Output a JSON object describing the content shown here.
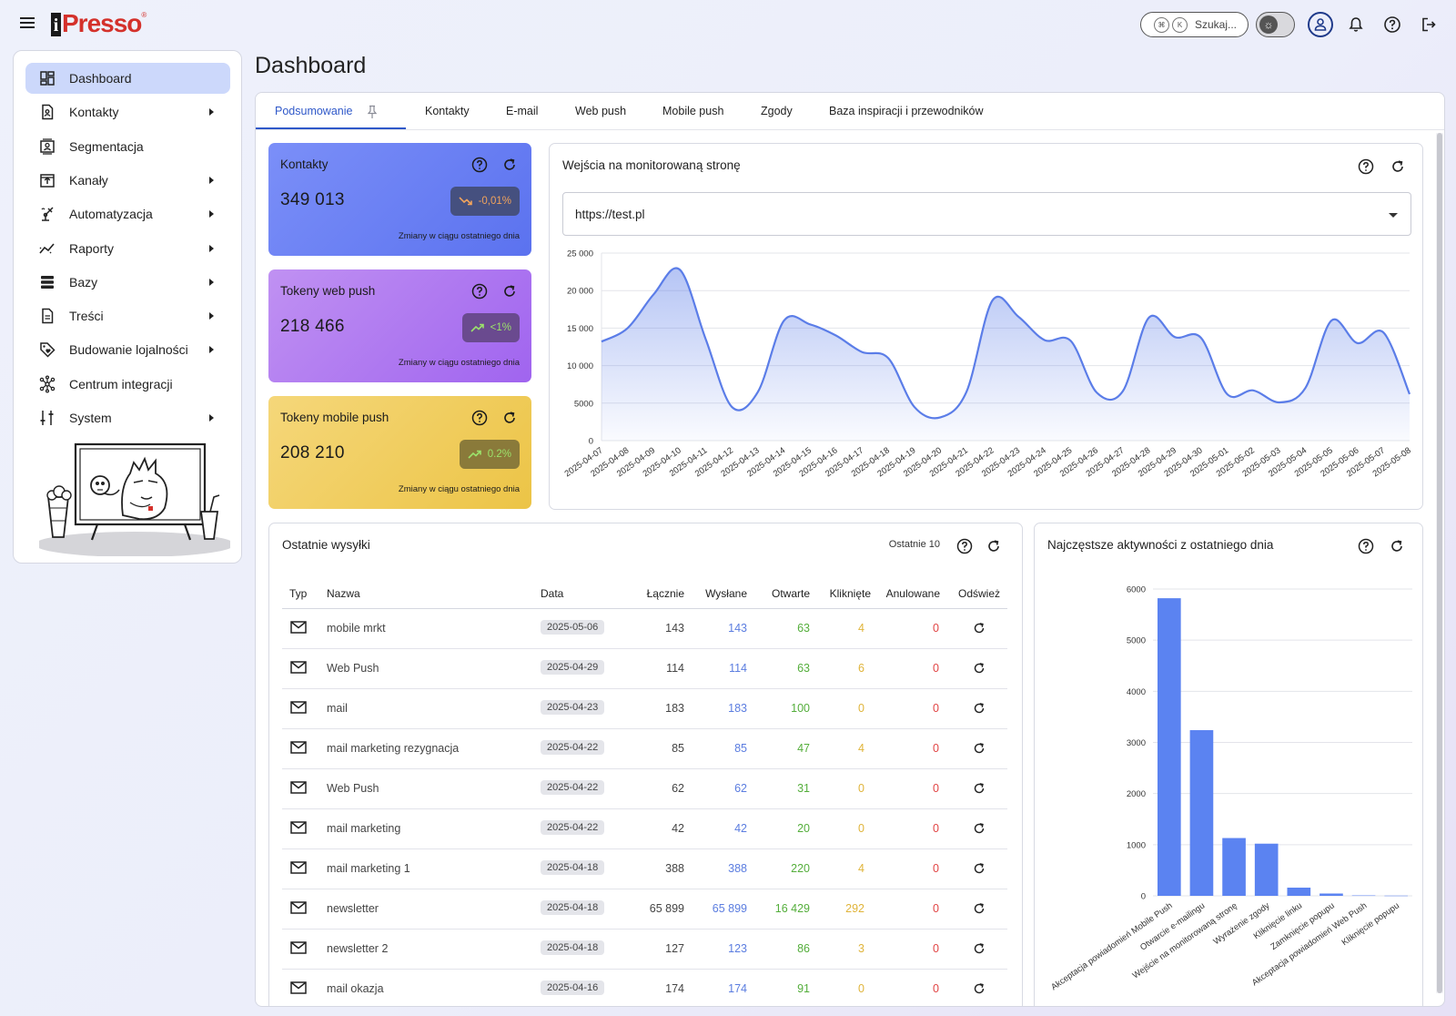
{
  "app": {
    "logo_text": "Presso",
    "logo_i": "i",
    "logo_reg": "®"
  },
  "topbar": {
    "search_placeholder": "Szukaj...",
    "search_kbd1": "⌘",
    "search_kbd2": "K",
    "icons": [
      "menu-icon",
      "theme-toggle-icon",
      "user-icon",
      "bell-icon",
      "help-icon",
      "logout-icon"
    ]
  },
  "sidebar": {
    "items": [
      {
        "label": "Dashboard",
        "icon": "dashboard-icon",
        "active": true,
        "caret": false
      },
      {
        "label": "Kontakty",
        "icon": "contact-icon",
        "active": false,
        "caret": true
      },
      {
        "label": "Segmentacja",
        "icon": "segment-icon",
        "active": false,
        "caret": false
      },
      {
        "label": "Kanały",
        "icon": "channel-icon",
        "active": false,
        "caret": true
      },
      {
        "label": "Automatyzacja",
        "icon": "automation-icon",
        "active": false,
        "caret": true
      },
      {
        "label": "Raporty",
        "icon": "report-icon",
        "active": false,
        "caret": true
      },
      {
        "label": "Bazy",
        "icon": "database-icon",
        "active": false,
        "caret": true
      },
      {
        "label": "Treści",
        "icon": "content-icon",
        "active": false,
        "caret": true
      },
      {
        "label": "Budowanie lojalności",
        "icon": "loyalty-icon",
        "active": false,
        "caret": true
      },
      {
        "label": "Centrum integracji",
        "icon": "integration-icon",
        "active": false,
        "caret": false
      },
      {
        "label": "System",
        "icon": "system-icon",
        "active": false,
        "caret": true
      }
    ]
  },
  "page": {
    "title": "Dashboard"
  },
  "tabs": [
    {
      "label": "Podsumowanie",
      "active": true
    },
    {
      "label": "Kontakty",
      "active": false
    },
    {
      "label": "E-mail",
      "active": false
    },
    {
      "label": "Web push",
      "active": false
    },
    {
      "label": "Mobile push",
      "active": false
    },
    {
      "label": "Zgody",
      "active": false
    },
    {
      "label": "Baza inspiracji i przewodników",
      "active": false
    }
  ],
  "stats": [
    {
      "title": "Kontakty",
      "value": "349 013",
      "change": "-0,01%",
      "trend": "down",
      "note": "Zmiany w ciągu ostatniego dnia"
    },
    {
      "title": "Tokeny web push",
      "value": "218 466",
      "change": "<1%",
      "trend": "up",
      "note": "Zmiany w ciągu ostatniego dnia"
    },
    {
      "title": "Tokeny mobile push",
      "value": "208 210",
      "change": "0.2%",
      "trend": "up",
      "note": "Zmiany w ciągu ostatniego dnia"
    }
  ],
  "visits": {
    "title": "Wejścia na monitorowaną stronę",
    "selected_site": "https://test.pl"
  },
  "sends": {
    "title": "Ostatnie wysyłki",
    "filter_label": "Ostatnie 10",
    "columns": [
      "Typ",
      "Nazwa",
      "Data",
      "Łącznie",
      "Wysłane",
      "Otwarte",
      "Kliknięte",
      "Anulowane",
      "Odśwież"
    ],
    "rows": [
      {
        "name": "mobile mrkt",
        "date": "2025-05-06",
        "total": "143",
        "sent": "143",
        "opened": "63",
        "clicked": "4",
        "cancelled": "0"
      },
      {
        "name": "Web Push",
        "date": "2025-04-29",
        "total": "114",
        "sent": "114",
        "opened": "63",
        "clicked": "6",
        "cancelled": "0"
      },
      {
        "name": "mail",
        "date": "2025-04-23",
        "total": "183",
        "sent": "183",
        "opened": "100",
        "clicked": "0",
        "cancelled": "0"
      },
      {
        "name": "mail marketing rezygnacja",
        "date": "2025-04-22",
        "total": "85",
        "sent": "85",
        "opened": "47",
        "clicked": "4",
        "cancelled": "0"
      },
      {
        "name": "Web Push",
        "date": "2025-04-22",
        "total": "62",
        "sent": "62",
        "opened": "31",
        "clicked": "0",
        "cancelled": "0"
      },
      {
        "name": "mail marketing",
        "date": "2025-04-22",
        "total": "42",
        "sent": "42",
        "opened": "20",
        "clicked": "0",
        "cancelled": "0"
      },
      {
        "name": "mail marketing 1",
        "date": "2025-04-18",
        "total": "388",
        "sent": "388",
        "opened": "220",
        "clicked": "4",
        "cancelled": "0"
      },
      {
        "name": "newsletter",
        "date": "2025-04-18",
        "total": "65 899",
        "sent": "65 899",
        "opened": "16 429",
        "clicked": "292",
        "cancelled": "0"
      },
      {
        "name": "newsletter 2",
        "date": "2025-04-18",
        "total": "127",
        "sent": "123",
        "opened": "86",
        "clicked": "3",
        "cancelled": "0"
      },
      {
        "name": "mail okazja",
        "date": "2025-04-16",
        "total": "174",
        "sent": "174",
        "opened": "91",
        "clicked": "0",
        "cancelled": "0"
      }
    ]
  },
  "activities": {
    "title": "Najczęstsze aktywności z ostatniego dnia"
  },
  "colors": {
    "accent": "#2f58c9",
    "line": "#5b7de8",
    "bar": "#5b83f1",
    "sent": "#5b7de0",
    "opened": "#54ae3b",
    "clicked": "#e0b43a",
    "cancelled": "#e14444"
  },
  "chart_data": [
    {
      "type": "area",
      "ylim": [
        0,
        25000
      ],
      "yticks": [
        "0",
        "5000",
        "10 000",
        "15 000",
        "20 000",
        "25 000"
      ],
      "ytick_values": [
        0,
        5000,
        10000,
        15000,
        20000,
        25000
      ],
      "x": [
        "2025-04-07",
        "2025-04-08",
        "2025-04-09",
        "2025-04-10",
        "2025-04-11",
        "2025-04-12",
        "2025-04-13",
        "2025-04-14",
        "2025-04-15",
        "2025-04-16",
        "2025-04-17",
        "2025-04-18",
        "2025-04-19",
        "2025-04-20",
        "2025-04-21",
        "2025-04-22",
        "2025-04-23",
        "2025-04-24",
        "2025-04-25",
        "2025-04-26",
        "2025-04-27",
        "2025-04-28",
        "2025-04-29",
        "2025-04-30",
        "2025-05-01",
        "2025-05-02",
        "2025-05-03",
        "2025-05-04",
        "2025-05-05",
        "2025-05-06",
        "2025-05-07",
        "2025-05-08"
      ],
      "values": [
        13200,
        15000,
        19500,
        22800,
        13500,
        4500,
        6500,
        16000,
        15500,
        14000,
        11800,
        11000,
        4500,
        3100,
        6500,
        18700,
        16500,
        13400,
        13300,
        6400,
        6600,
        16400,
        13800,
        13700,
        6200,
        6700,
        5100,
        7000,
        16000,
        13000,
        14400,
        6200
      ]
    },
    {
      "type": "bar",
      "ylim": [
        0,
        6000
      ],
      "yticks": [
        "0",
        "1000",
        "2000",
        "3000",
        "4000",
        "5000",
        "6000"
      ],
      "ytick_values": [
        0,
        1000,
        2000,
        3000,
        4000,
        5000,
        6000
      ],
      "categories": [
        "Akceptacja powiadomień Mobile Push",
        "Otwarcie e-mailingu",
        "Wejście na monitorowaną stronę",
        "Wyrażenie zgody",
        "Kliknięcie linku",
        "Zamknięcie popupu",
        "Akceptacja powiadomień Web Push",
        "Kliknięcie popupu"
      ],
      "values": [
        5820,
        3240,
        1130,
        1020,
        160,
        45,
        8,
        4
      ]
    }
  ]
}
